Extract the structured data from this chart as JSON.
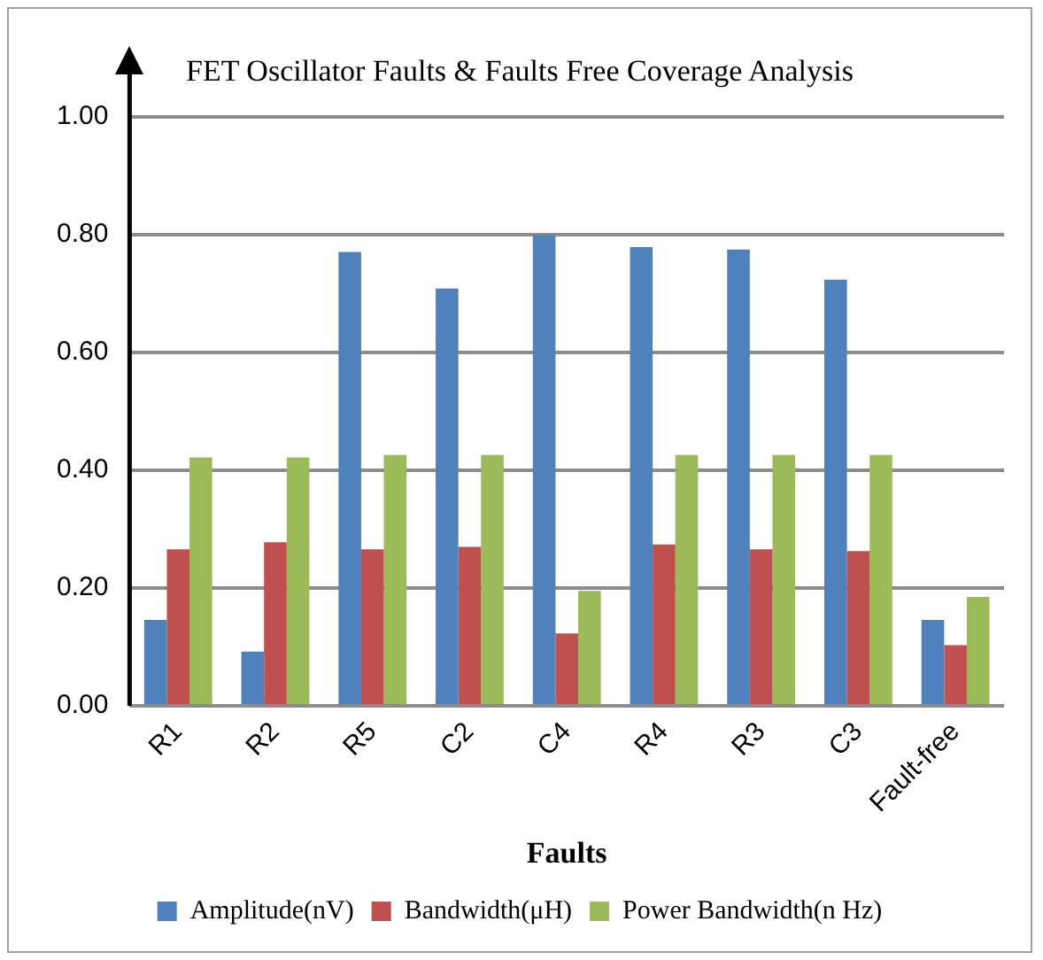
{
  "chart_data": {
    "type": "bar",
    "title": "FET Oscillator Faults & Faults Free Coverage Analysis",
    "xlabel": "Faults",
    "categories": [
      "R1",
      "R2",
      "R5",
      "C2",
      "C4",
      "R4",
      "R3",
      "C3",
      "Fault-free"
    ],
    "series": [
      {
        "name": "Amplitude(nV)",
        "color": "#4f81bd",
        "values": [
          0.146,
          0.092,
          0.771,
          0.709,
          0.8,
          0.779,
          0.775,
          0.724,
          0.146
        ]
      },
      {
        "name": "Bandwidth(μH)",
        "color": "#c0504d",
        "values": [
          0.266,
          0.278,
          0.266,
          0.27,
          0.123,
          0.274,
          0.266,
          0.263,
          0.103
        ]
      },
      {
        "name": "Power Bandwidth(n Hz)",
        "color": "#9bbb59",
        "values": [
          0.422,
          0.422,
          0.426,
          0.426,
          0.195,
          0.426,
          0.426,
          0.426,
          0.185
        ]
      }
    ],
    "ylim": [
      0,
      1
    ],
    "yticks": [
      {
        "value": 0,
        "label": "0.00"
      },
      {
        "value": 0.2,
        "label": "0.20"
      },
      {
        "value": 0.4,
        "label": "0.40"
      },
      {
        "value": 0.6,
        "label": "0.60"
      },
      {
        "value": 0.8,
        "label": "0.80"
      },
      {
        "value": 1,
        "label": "1.00"
      }
    ],
    "grid": "y",
    "legend": "bottom"
  }
}
